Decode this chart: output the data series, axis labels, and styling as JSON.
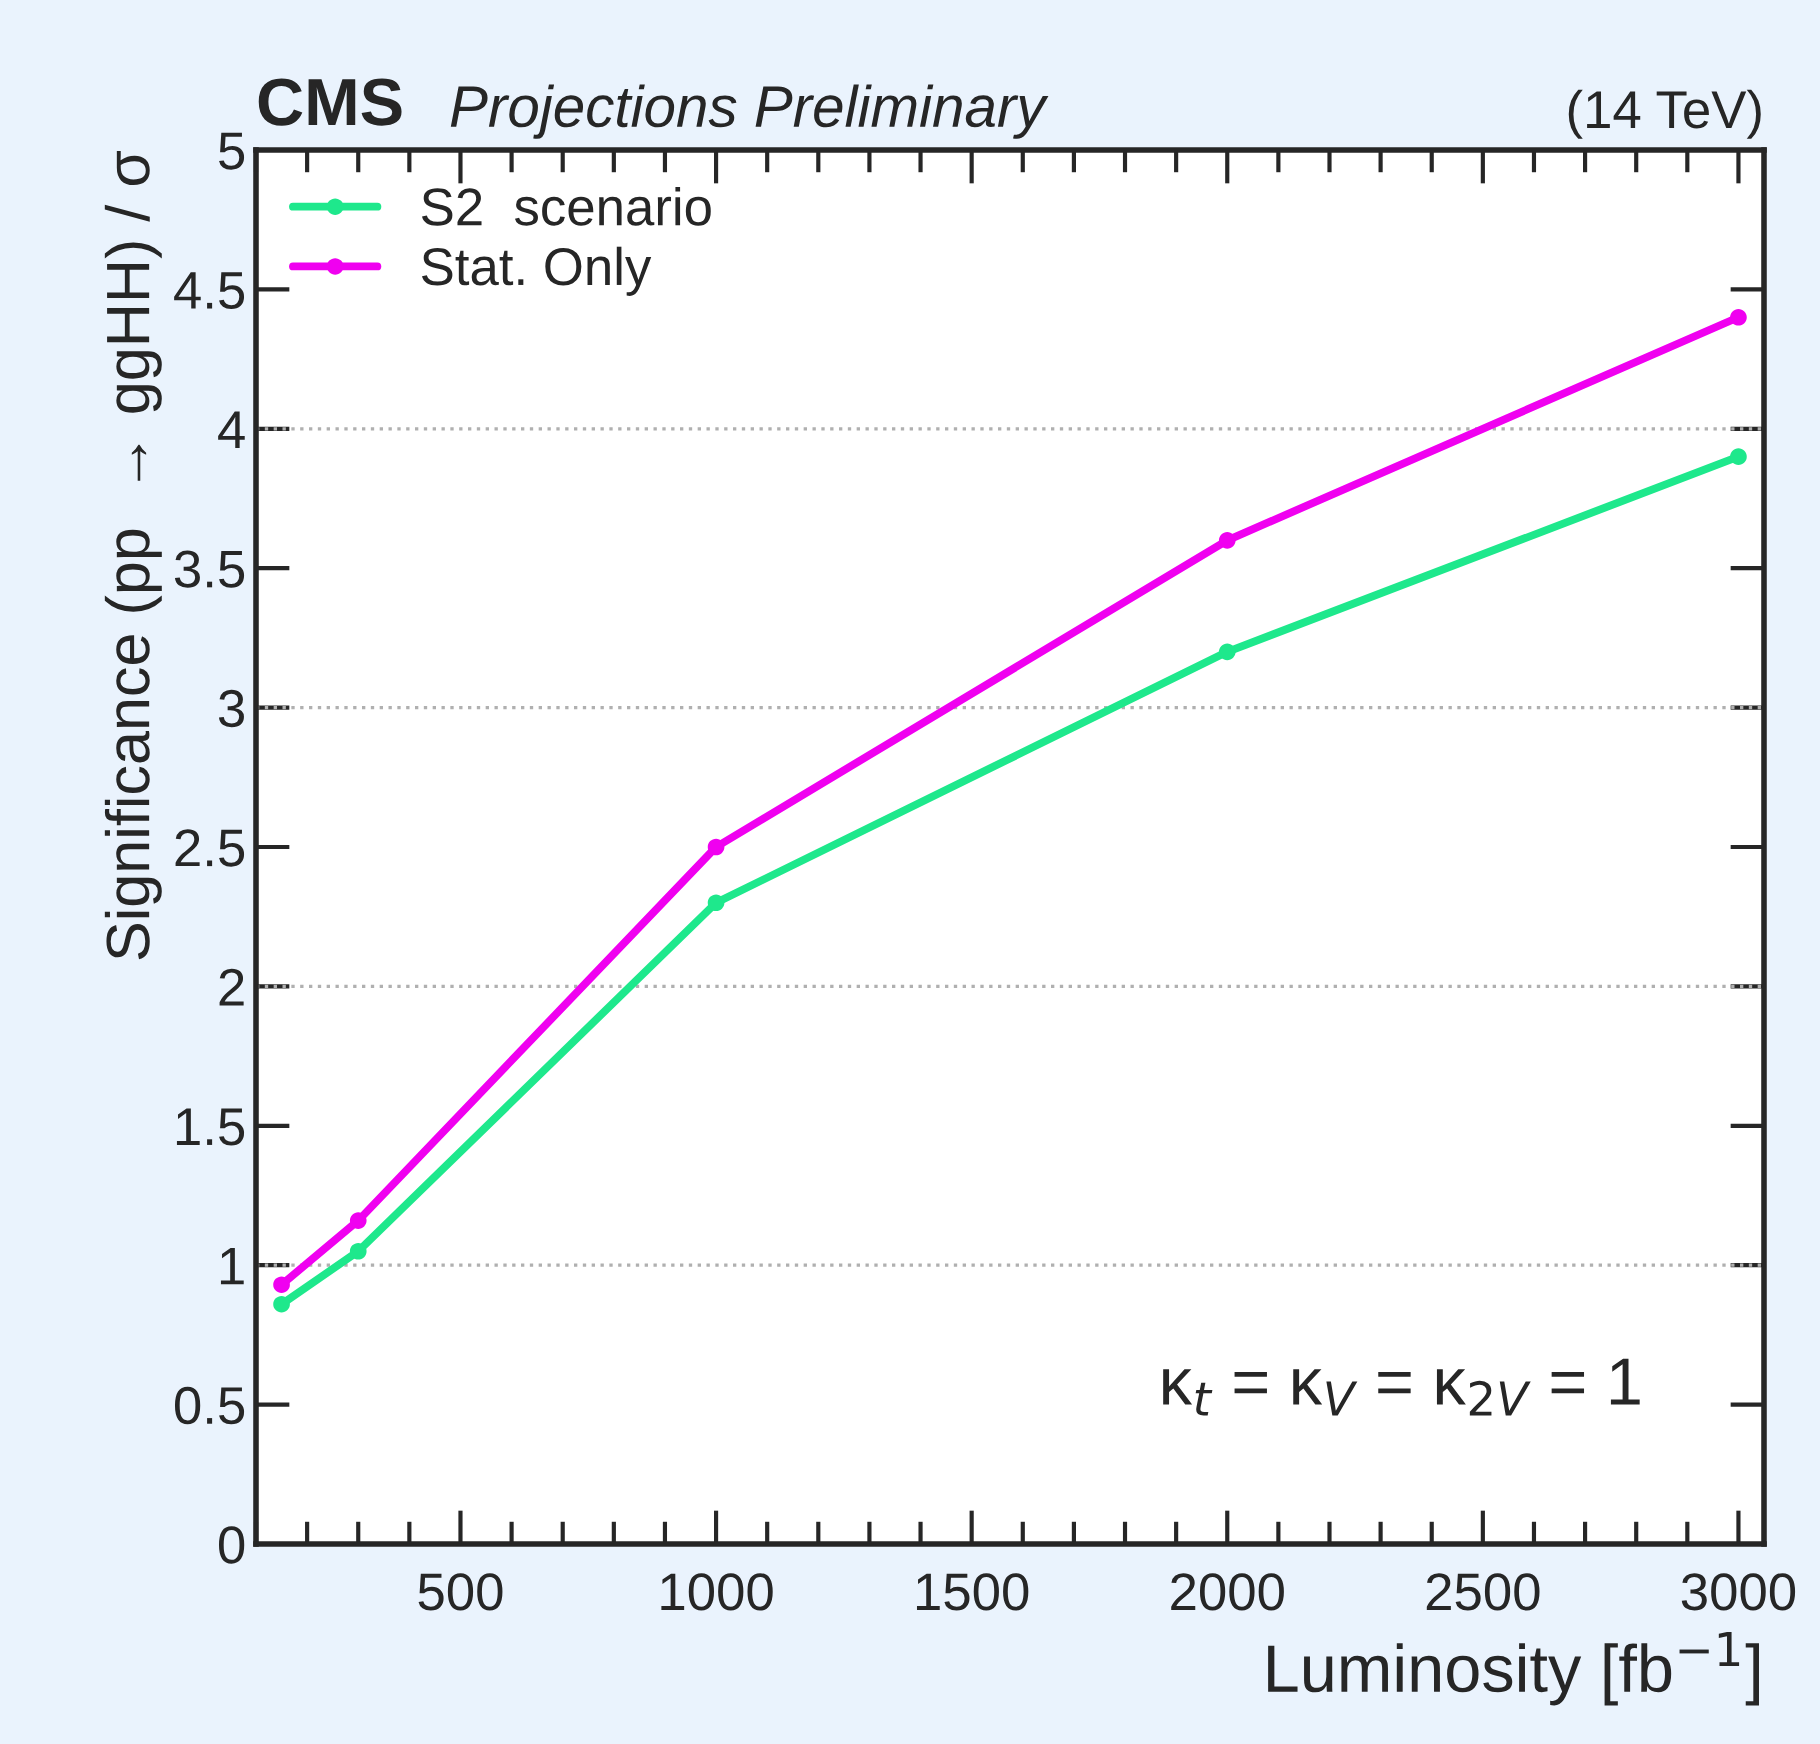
{
  "chart_data": {
    "type": "line",
    "xlabel": "Luminosity [fb$^{−1}$]",
    "ylabel": "Significance (pp  → ggHH) / σ",
    "annotations": [
      "CMS",
      "Projections Preliminary",
      "(14 TeV)",
      "κ$_{t}$ = κ$_{V}$ = κ$_{2V}$ = 1"
    ],
    "x": [
      150,
      300,
      1000,
      2000,
      3000
    ],
    "series": [
      {
        "name": "S2  scenario",
        "color": "#1ee88c",
        "values": [
          0.86,
          1.05,
          2.3,
          3.2,
          3.9
        ]
      },
      {
        "name": "Stat. Only",
        "color": "#f000f0",
        "values": [
          0.93,
          1.16,
          2.5,
          3.6,
          4.4
        ]
      }
    ],
    "xlim": [
      100,
      3050
    ],
    "xticks": [
      500,
      1000,
      1500,
      2000,
      2500,
      3000
    ],
    "ylim": [
      0,
      5
    ],
    "yticks": [
      0,
      0.5,
      1,
      1.5,
      2,
      2.5,
      3,
      3.5,
      4,
      4.5,
      5
    ],
    "ref_lines": [
      {
        "axis": "y",
        "value": 1,
        "color": "#b0b0b0",
        "line_style": "dotted"
      },
      {
        "axis": "y",
        "value": 2,
        "color": "#b0b0b0",
        "line_style": "dotted"
      },
      {
        "axis": "y",
        "value": 3,
        "color": "#b0b0b0",
        "line_style": "dotted"
      },
      {
        "axis": "y",
        "value": 4,
        "color": "#b0b0b0",
        "line_style": "dotted"
      }
    ],
    "grid": false,
    "legend": "top left",
    "marker": "circle",
    "line_style": "solid"
  }
}
